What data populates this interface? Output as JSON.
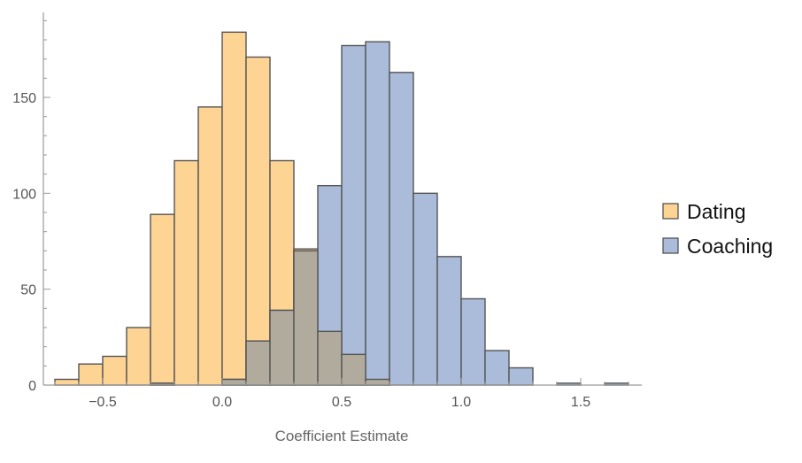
{
  "chart_data": {
    "type": "bar",
    "subtype": "overlapping-histogram",
    "xlabel": "Coefficient Estimate",
    "ylabel": "",
    "xlim": [
      -0.72,
      1.75
    ],
    "ylim": [
      0,
      195
    ],
    "bin_width": 0.1,
    "x_ticks": [
      -0.5,
      0.0,
      0.5,
      1.0,
      1.5
    ],
    "x_tick_labels": [
      "−0.5",
      "0.0",
      "0.5",
      "1.0",
      "1.5"
    ],
    "y_ticks": [
      0,
      50,
      100,
      150
    ],
    "y_tick_labels": [
      "0",
      "50",
      "100",
      "150"
    ],
    "grid": false,
    "legend_position": "right",
    "series": [
      {
        "name": "Dating",
        "color": "#fdd493",
        "bins": [
          {
            "x0": -0.7,
            "x1": -0.6,
            "count": 3
          },
          {
            "x0": -0.6,
            "x1": -0.5,
            "count": 11
          },
          {
            "x0": -0.5,
            "x1": -0.4,
            "count": 15
          },
          {
            "x0": -0.4,
            "x1": -0.3,
            "count": 30
          },
          {
            "x0": -0.3,
            "x1": -0.2,
            "count": 89
          },
          {
            "x0": -0.2,
            "x1": -0.1,
            "count": 117
          },
          {
            "x0": -0.1,
            "x1": 0.0,
            "count": 145
          },
          {
            "x0": 0.0,
            "x1": 0.1,
            "count": 184
          },
          {
            "x0": 0.1,
            "x1": 0.2,
            "count": 171
          },
          {
            "x0": 0.2,
            "x1": 0.3,
            "count": 117
          },
          {
            "x0": 0.3,
            "x1": 0.4,
            "count": 71
          },
          {
            "x0": 0.4,
            "x1": 0.5,
            "count": 28
          },
          {
            "x0": 0.5,
            "x1": 0.6,
            "count": 16
          },
          {
            "x0": 0.6,
            "x1": 0.7,
            "count": 3
          }
        ]
      },
      {
        "name": "Coaching",
        "color": "#aabcd9",
        "bins": [
          {
            "x0": -0.3,
            "x1": -0.2,
            "count": 1
          },
          {
            "x0": 0.0,
            "x1": 0.1,
            "count": 3
          },
          {
            "x0": 0.1,
            "x1": 0.2,
            "count": 23
          },
          {
            "x0": 0.2,
            "x1": 0.3,
            "count": 39
          },
          {
            "x0": 0.3,
            "x1": 0.4,
            "count": 70
          },
          {
            "x0": 0.4,
            "x1": 0.5,
            "count": 104
          },
          {
            "x0": 0.5,
            "x1": 0.6,
            "count": 177
          },
          {
            "x0": 0.6,
            "x1": 0.7,
            "count": 179
          },
          {
            "x0": 0.7,
            "x1": 0.8,
            "count": 163
          },
          {
            "x0": 0.8,
            "x1": 0.9,
            "count": 100
          },
          {
            "x0": 0.9,
            "x1": 1.0,
            "count": 67
          },
          {
            "x0": 1.0,
            "x1": 1.1,
            "count": 45
          },
          {
            "x0": 1.1,
            "x1": 1.2,
            "count": 18
          },
          {
            "x0": 1.2,
            "x1": 1.3,
            "count": 9
          },
          {
            "x0": 1.4,
            "x1": 1.5,
            "count": 1
          },
          {
            "x0": 1.6,
            "x1": 1.7,
            "count": 1
          }
        ]
      }
    ],
    "overlap_color": "#b1ab9e"
  }
}
